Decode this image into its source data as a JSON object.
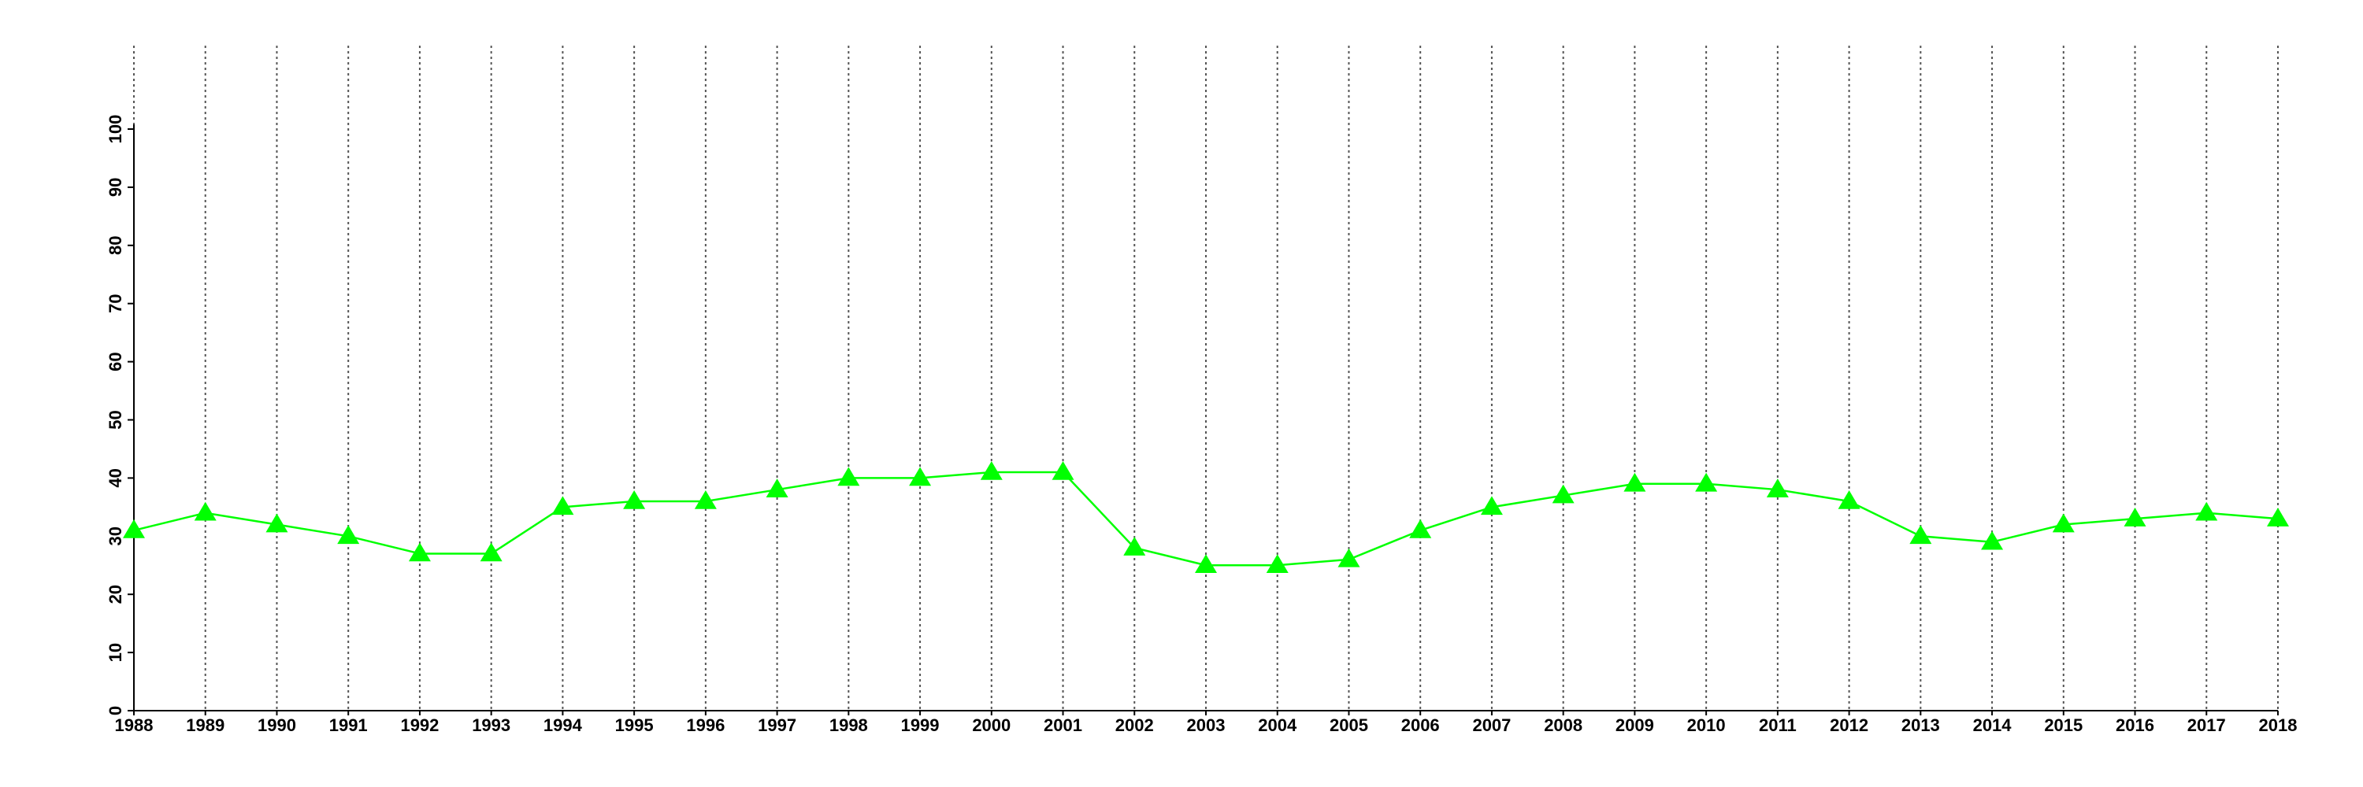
{
  "chart_data": {
    "type": "line",
    "x": [
      1988,
      1989,
      1990,
      1991,
      1992,
      1993,
      1994,
      1995,
      1996,
      1997,
      1998,
      1999,
      2000,
      2001,
      2002,
      2003,
      2004,
      2005,
      2006,
      2007,
      2008,
      2009,
      2010,
      2011,
      2012,
      2013,
      2014,
      2015,
      2016,
      2017,
      2018
    ],
    "series": [
      {
        "color": "#00ff00",
        "marker": "triangle",
        "values": [
          31,
          34,
          32,
          30,
          27,
          27,
          35,
          36,
          36,
          38,
          40,
          40,
          41,
          41,
          28,
          25,
          25,
          26,
          31,
          35,
          37,
          39,
          39,
          38,
          36,
          30,
          29,
          32,
          33,
          34,
          33
        ]
      }
    ],
    "xlim": [
      1988,
      2018
    ],
    "xticks": [
      1988,
      1989,
      1990,
      1991,
      1992,
      1993,
      1994,
      1995,
      1996,
      1997,
      1998,
      1999,
      2000,
      2001,
      2002,
      2003,
      2004,
      2005,
      2006,
      2007,
      2008,
      2009,
      2010,
      2011,
      2012,
      2013,
      2014,
      2015,
      2016,
      2017,
      2018
    ],
    "ylim": [
      0,
      100
    ],
    "yticks": [
      0,
      10,
      20,
      30,
      40,
      50,
      60,
      70,
      80,
      90,
      100
    ],
    "grid": "x"
  }
}
